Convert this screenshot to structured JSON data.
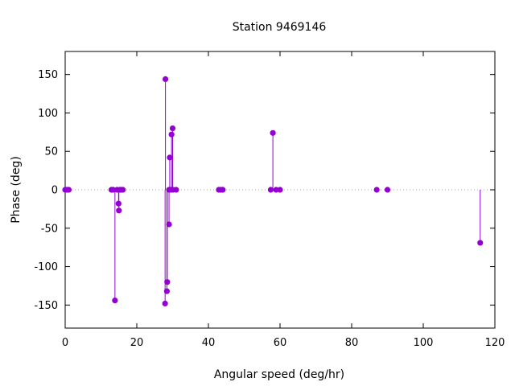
{
  "chart_data": {
    "type": "scatter",
    "style": "impulses-with-points",
    "title": "Station 9469146",
    "xlabel": "Angular speed (deg/hr)",
    "ylabel": "Phase (deg)",
    "xlim": [
      0,
      120
    ],
    "ylim": [
      -180,
      180
    ],
    "xticks": [
      0,
      20,
      40,
      60,
      80,
      100,
      120
    ],
    "yticks": [
      -150,
      -100,
      -50,
      0,
      50,
      100,
      150
    ],
    "zero_line": "dotted",
    "color": "#9400d3",
    "grid": false,
    "points": [
      {
        "x": 0.0,
        "y": 0
      },
      {
        "x": 0.5,
        "y": 0
      },
      {
        "x": 1.0,
        "y": 0
      },
      {
        "x": 12.9,
        "y": 0
      },
      {
        "x": 13.4,
        "y": 0
      },
      {
        "x": 13.9,
        "y": -144
      },
      {
        "x": 14.5,
        "y": 0
      },
      {
        "x": 14.9,
        "y": -18
      },
      {
        "x": 15.0,
        "y": -27
      },
      {
        "x": 15.3,
        "y": 0
      },
      {
        "x": 15.6,
        "y": 0
      },
      {
        "x": 16.1,
        "y": 0
      },
      {
        "x": 27.9,
        "y": -148
      },
      {
        "x": 28.0,
        "y": 144
      },
      {
        "x": 28.4,
        "y": -132
      },
      {
        "x": 28.5,
        "y": -120
      },
      {
        "x": 29.0,
        "y": -45
      },
      {
        "x": 29.0,
        "y": 0
      },
      {
        "x": 29.2,
        "y": 42
      },
      {
        "x": 29.5,
        "y": 0
      },
      {
        "x": 29.7,
        "y": 72
      },
      {
        "x": 30.0,
        "y": 80
      },
      {
        "x": 30.1,
        "y": 0
      },
      {
        "x": 31.0,
        "y": 0
      },
      {
        "x": 42.9,
        "y": 0
      },
      {
        "x": 43.5,
        "y": 0
      },
      {
        "x": 44.0,
        "y": 0
      },
      {
        "x": 57.4,
        "y": 0
      },
      {
        "x": 58.0,
        "y": 74
      },
      {
        "x": 58.9,
        "y": 0
      },
      {
        "x": 60.0,
        "y": 0
      },
      {
        "x": 87.0,
        "y": 0
      },
      {
        "x": 90.0,
        "y": 0
      },
      {
        "x": 115.9,
        "y": -69
      }
    ]
  }
}
